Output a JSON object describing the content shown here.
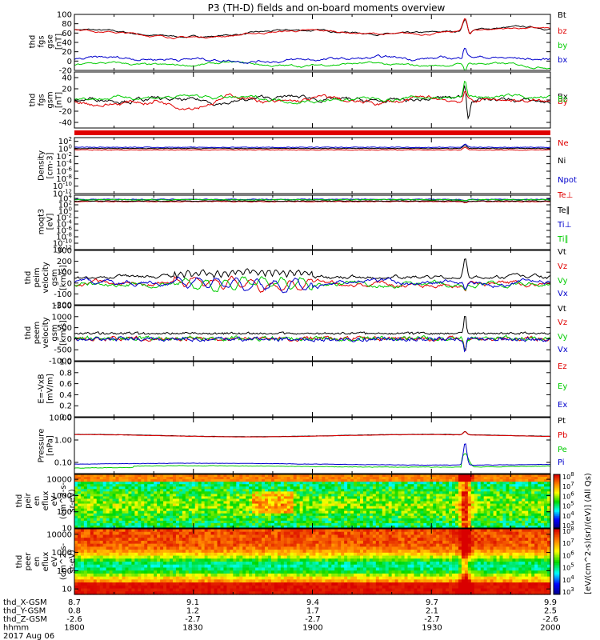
{
  "title": "P3 (TH-D) fields and on-board moments overview",
  "date_label": "2017 Aug 06",
  "orbit_labels": [
    "thd_X-GSM",
    "thd_Y-GSM",
    "thd_Z-GSM",
    "hhmm"
  ],
  "orbit_ticks": [
    {
      "x": "8.7",
      "y": "0.8",
      "z": "-2.6",
      "t": "1800"
    },
    {
      "x": "9.1",
      "y": "1.2",
      "z": "-2.7",
      "t": "1830"
    },
    {
      "x": "9.4",
      "y": "1.7",
      "z": "-2.7",
      "t": "1900"
    },
    {
      "x": "9.7",
      "y": "2.1",
      "z": "-2.7",
      "t": "1930"
    },
    {
      "x": "9.9",
      "y": "2.5",
      "z": "-2.6",
      "t": "2000"
    }
  ],
  "colorbar_label": "[eV/(cm^2-s)(sr)/(eV)] (All Qs)",
  "colorbar_ticks": [
    "10^8",
    "10^7",
    "10^6",
    "10^5",
    "10^4",
    "10^3"
  ],
  "colors": {
    "black": "#000000",
    "red": "#e00000",
    "green": "#00cc00",
    "blue": "#0000cc",
    "grey": "#eeeeee"
  },
  "chart_data": [
    {
      "type": "line",
      "id": "fgs_gse",
      "ylabel": [
        "thd",
        "fgs",
        "gse",
        "[nT]"
      ],
      "ylim": [
        -20,
        100
      ],
      "yticks": [
        "100",
        "80",
        "60",
        "40",
        "20",
        "0",
        "-20"
      ],
      "ytick_vals": [
        100,
        80,
        60,
        40,
        20,
        0,
        -20
      ],
      "xlim": [
        0,
        120
      ],
      "x_unit": "minutes after 18:00",
      "series": [
        {
          "name": "Bt",
          "color": "#000000",
          "kind": "fgs_bt",
          "base": 62
        },
        {
          "name": "bz",
          "color": "#e00000",
          "kind": "fgs_bt",
          "base": 61
        },
        {
          "name": "by",
          "color": "#00cc00",
          "kind": "by",
          "base": -8
        },
        {
          "name": "bx",
          "color": "#0000cc",
          "kind": "bx",
          "base": 4
        }
      ]
    },
    {
      "type": "line",
      "id": "fgs_gsm",
      "ylabel": [
        "thd",
        "fgs",
        "gsm",
        "[nT]"
      ],
      "ylim": [
        -50,
        50
      ],
      "yticks": [
        "40",
        "20",
        "0",
        "-20",
        "-40"
      ],
      "ytick_vals": [
        40,
        20,
        0,
        -20,
        -40
      ],
      "xlim": [
        0,
        120
      ],
      "series": [
        {
          "name": "Bx",
          "color": "#000000",
          "kind": "gsm_x",
          "base": 0
        },
        {
          "name": "By",
          "color": "#e00000",
          "kind": "gsm_y",
          "base": -2
        },
        {
          "name": "Bz",
          "color": "#00cc00",
          "kind": "gsm_z",
          "base": 3
        }
      ]
    },
    {
      "type": "line",
      "id": "density",
      "ylabel": [
        "Density",
        "[cm-3]"
      ],
      "ylim": [
        -12,
        3
      ],
      "log": true,
      "yticks": [
        "10^2",
        "10^0",
        "10^-2",
        "10^-4",
        "10^-6",
        "10^-8",
        "10^-10",
        "10^-12"
      ],
      "ytick_vals": [
        2,
        0,
        -2,
        -4,
        -6,
        -8,
        -10,
        -12
      ],
      "xlim": [
        0,
        120
      ],
      "series": [
        {
          "name": "Ne",
          "color": "#e00000",
          "kind": "dens",
          "base": -0.3
        },
        {
          "name": "Ni",
          "color": "#000000",
          "kind": "dens",
          "base": 0.1
        },
        {
          "name": "Npot",
          "color": "#0000cc",
          "kind": "dens",
          "base": 0.4
        }
      ]
    },
    {
      "type": "line",
      "id": "temp",
      "ylabel": [
        "moqt3",
        "[eV]"
      ],
      "ylim": [
        -12,
        5
      ],
      "log": true,
      "yticks": [
        "10^4",
        "10^2",
        "10^0",
        "10^-2",
        "10^-4",
        "10^-6",
        "10^-8",
        "10^-10",
        "10^-12"
      ],
      "ytick_vals": [
        4,
        2,
        0,
        -2,
        -4,
        -6,
        -8,
        -10,
        -12
      ],
      "xlim": [
        0,
        120
      ],
      "series": [
        {
          "name": "Te⊥",
          "color": "#e00000",
          "kind": "temp",
          "base": 3.0
        },
        {
          "name": "Te∥",
          "color": "#000000",
          "kind": "temp",
          "base": 3.2
        },
        {
          "name": "Ti⊥",
          "color": "#0000cc",
          "kind": "temp",
          "base": 3.7
        },
        {
          "name": "Ti∥",
          "color": "#00cc00",
          "kind": "temp",
          "base": 3.6
        }
      ]
    },
    {
      "type": "line",
      "id": "peim_vel",
      "ylabel": [
        "thd",
        "peim",
        "velocity",
        "gsm",
        "[km/s]"
      ],
      "ylim": [
        -200,
        300
      ],
      "yticks": [
        "300",
        "200",
        "100",
        "0",
        "-100",
        "-200"
      ],
      "ytick_vals": [
        300,
        200,
        100,
        0,
        -100,
        -200
      ],
      "xlim": [
        0,
        120
      ],
      "series": [
        {
          "name": "Vt",
          "color": "#000000",
          "kind": "vt_i",
          "base": 40
        },
        {
          "name": "Vz",
          "color": "#e00000",
          "kind": "vc_i",
          "base": 0
        },
        {
          "name": "Vy",
          "color": "#00cc00",
          "kind": "vc_i",
          "base": -10
        },
        {
          "name": "Vx",
          "color": "#0000cc",
          "kind": "vc_i",
          "base": 5
        }
      ]
    },
    {
      "type": "line",
      "id": "peem_vel",
      "ylabel": [
        "thd",
        "peem",
        "velocity",
        "gsm",
        "[km/s]"
      ],
      "ylim": [
        -1000,
        1500
      ],
      "yticks": [
        "1500",
        "1000",
        "500",
        "0",
        "-500",
        "-1000"
      ],
      "ytick_vals": [
        1500,
        1000,
        500,
        0,
        -500,
        -1000
      ],
      "xlim": [
        0,
        120
      ],
      "series": [
        {
          "name": "Vt",
          "color": "#000000",
          "kind": "vt_e",
          "base": 200
        },
        {
          "name": "Vz",
          "color": "#e00000",
          "kind": "vc_e",
          "base": 0
        },
        {
          "name": "Vy",
          "color": "#00cc00",
          "kind": "vc_e",
          "base": 20
        },
        {
          "name": "Vx",
          "color": "#0000cc",
          "kind": "vc_e",
          "base": -20
        }
      ]
    },
    {
      "type": "line",
      "id": "efield",
      "ylabel": [
        "E=-VxB",
        "[mV/m]"
      ],
      "ylim": [
        0,
        1
      ],
      "yticks": [
        "1.0",
        "0.8",
        "0.6",
        "0.4",
        "0.2",
        "0.0"
      ],
      "ytick_vals": [
        1.0,
        0.8,
        0.6,
        0.4,
        0.2,
        0.0
      ],
      "xlim": [
        0,
        120
      ],
      "series": [
        {
          "name": "Ez",
          "color": "#e00000",
          "kind": "none",
          "base": 0
        },
        {
          "name": "Ey",
          "color": "#00cc00",
          "kind": "none",
          "base": 0
        },
        {
          "name": "Ex",
          "color": "#0000cc",
          "kind": "none",
          "base": 0
        }
      ]
    },
    {
      "type": "line",
      "id": "pressure",
      "ylabel": [
        "Pressure",
        "[nPa]"
      ],
      "ylim": [
        -1.5,
        1
      ],
      "log": true,
      "yticks": [
        "10.00",
        "1.00",
        "0.10"
      ],
      "ytick_vals": [
        1,
        0,
        -1
      ],
      "xlim": [
        0,
        120
      ],
      "series": [
        {
          "name": "Pt",
          "color": "#000000",
          "kind": "press",
          "base": 0.2
        },
        {
          "name": "Pb",
          "color": "#e00000",
          "kind": "press",
          "base": 0.19
        },
        {
          "name": "Pe",
          "color": "#00cc00",
          "kind": "pe",
          "base": -1.25
        },
        {
          "name": "Pi",
          "color": "#0000cc",
          "kind": "pi",
          "base": -1.08
        }
      ]
    },
    {
      "type": "heatmap",
      "id": "peir",
      "ylabel": [
        "thd",
        "peir",
        "en",
        "eflux",
        "eV",
        "(cm^2-s-",
        "sr-eV)"
      ],
      "ylim": [
        1,
        4.3
      ],
      "log": true,
      "yticks": [
        "10000",
        "1000",
        "100",
        "10"
      ],
      "ytick_vals": [
        4,
        3,
        2,
        1
      ],
      "colorbar_range": [
        "10^3",
        "10^8"
      ],
      "xlim": [
        0,
        120
      ]
    },
    {
      "type": "heatmap",
      "id": "peer",
      "ylabel": [
        "thd",
        "peer",
        "en",
        "eflux",
        "eV",
        "(cm^2-s-",
        "sr-eV)"
      ],
      "ylim": [
        0.7,
        4.3
      ],
      "log": true,
      "yticks": [
        "10000",
        "1000",
        "100",
        "10"
      ],
      "ytick_vals": [
        4,
        3,
        2,
        1
      ],
      "colorbar_range": [
        "10^3",
        "10^8"
      ],
      "xlim": [
        0,
        120
      ]
    }
  ]
}
